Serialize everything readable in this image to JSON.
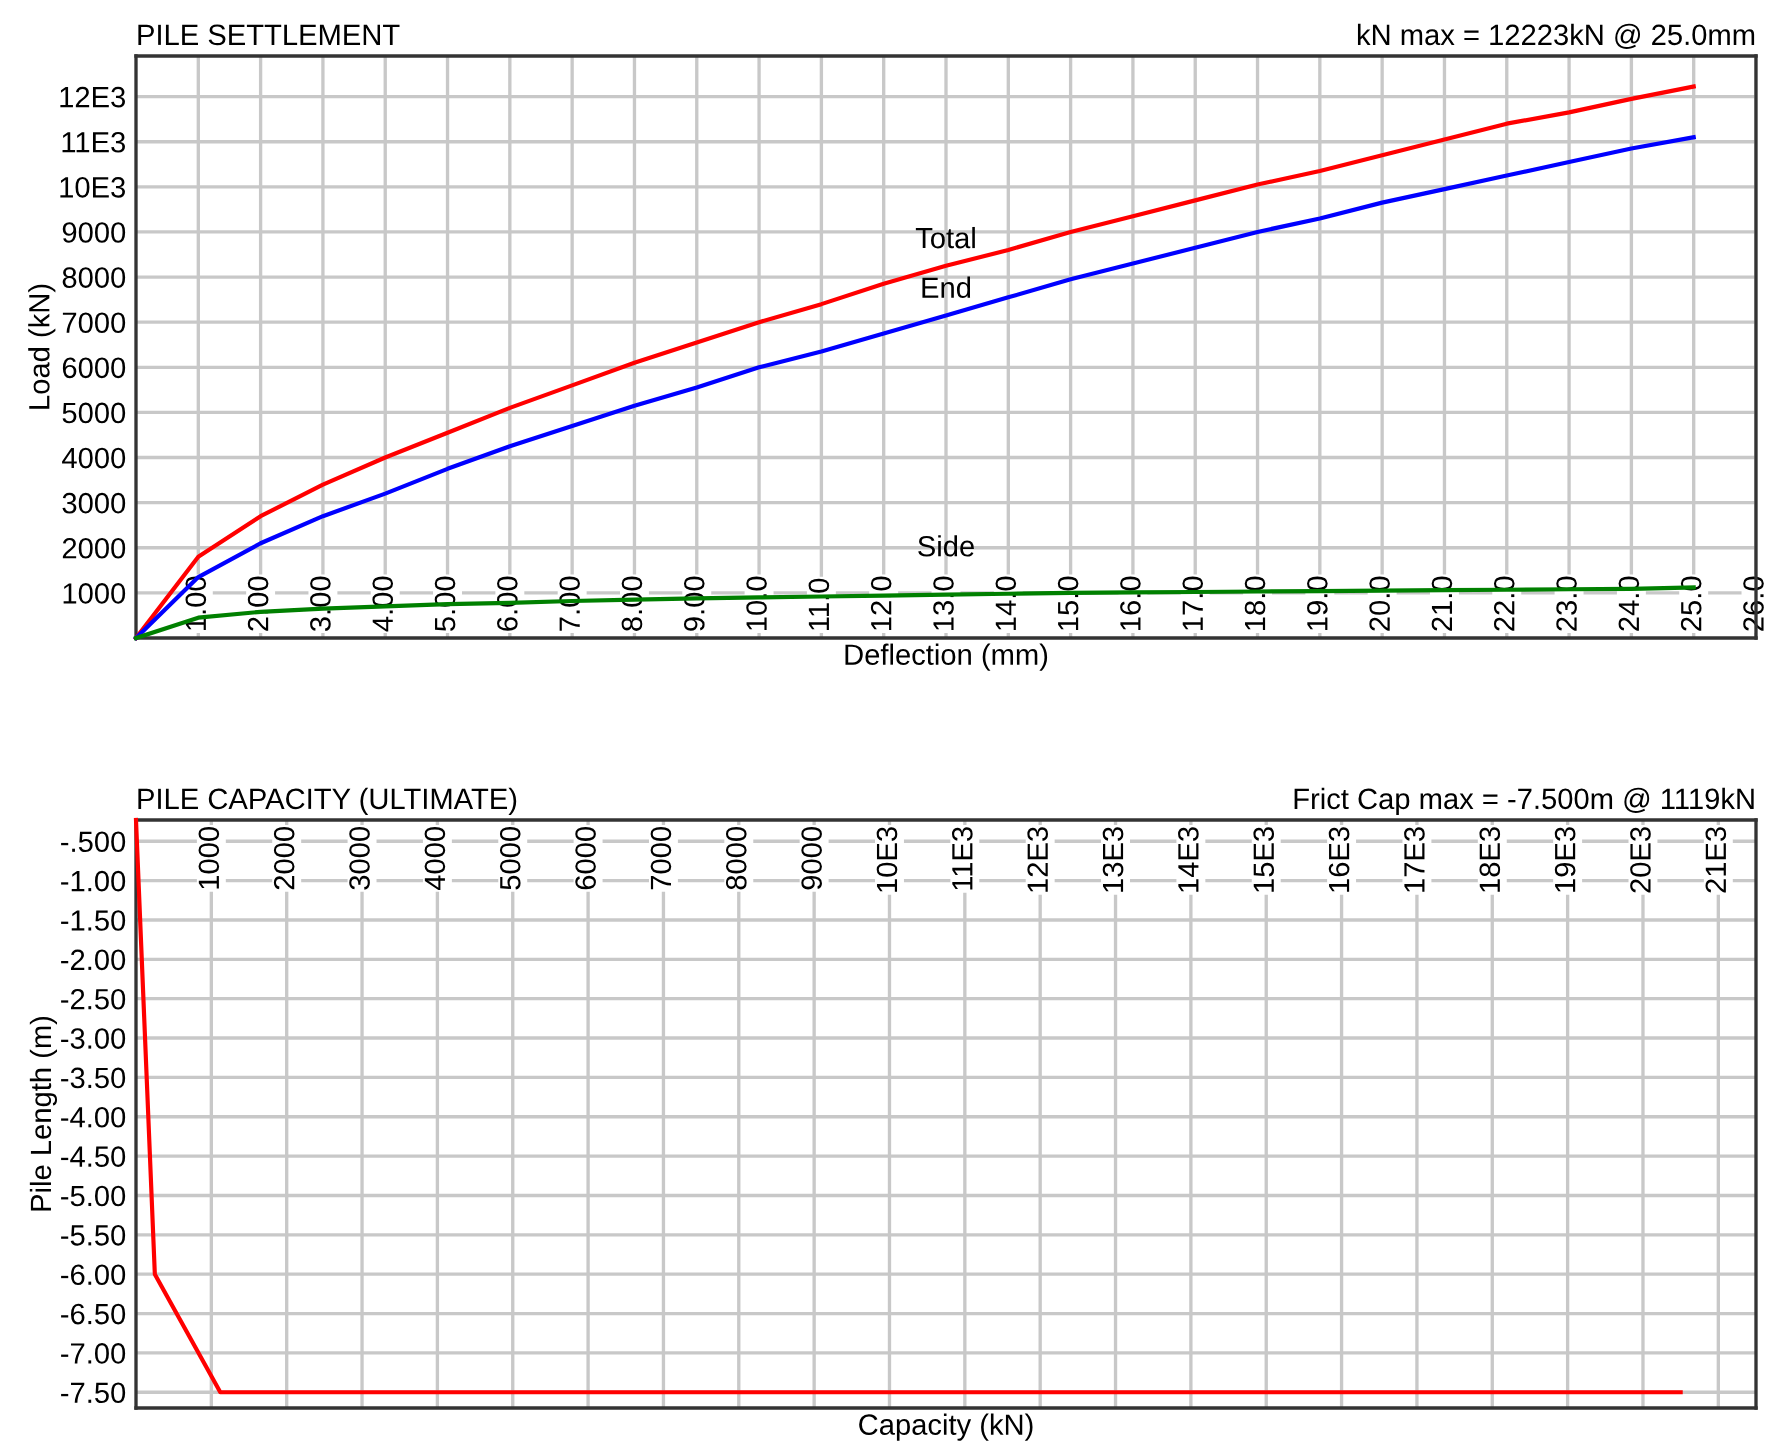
{
  "chart_data": [
    {
      "type": "line",
      "title": "PILE SETTLEMENT",
      "subtitle": "kN max = 12223kN @ 25.0mm",
      "xlabel": "Deflection (mm)",
      "ylabel": "Load (kN)",
      "x": [
        0,
        1,
        2,
        3,
        4,
        5,
        6,
        7,
        8,
        9,
        10,
        11,
        12,
        13,
        14,
        15,
        16,
        17,
        18,
        19,
        20,
        21,
        22,
        23,
        24,
        25
      ],
      "series": [
        {
          "color": "#ff0000",
          "values": [
            0,
            1800,
            2700,
            3400,
            4000,
            4550,
            5100,
            5600,
            6100,
            6550,
            7000,
            7400,
            7850,
            8250,
            8600,
            9000,
            9350,
            9700,
            10050,
            10350,
            10700,
            11050,
            11400,
            11650,
            11950,
            12223
          ]
        },
        {
          "color": "#0000ff",
          "values": [
            0,
            1350,
            2100,
            2700,
            3200,
            3750,
            4250,
            4700,
            5150,
            5550,
            6000,
            6350,
            6750,
            7150,
            7550,
            7950,
            8300,
            8650,
            9000,
            9300,
            9650,
            9950,
            10250,
            10550,
            10850,
            11100
          ]
        },
        {
          "color": "#008000",
          "values": [
            0,
            450,
            580,
            650,
            700,
            750,
            780,
            820,
            850,
            880,
            900,
            920,
            940,
            960,
            980,
            1000,
            1010,
            1020,
            1030,
            1040,
            1050,
            1060,
            1070,
            1080,
            1090,
            1120
          ]
        }
      ],
      "annotations": [
        "Total",
        "End",
        "Side"
      ],
      "xlim": [
        0,
        26
      ],
      "ylim": [
        0,
        12900
      ],
      "xticks": [
        {
          "value": 1,
          "label": "1.00"
        },
        {
          "value": 2,
          "label": "2.00"
        },
        {
          "value": 3,
          "label": "3.00"
        },
        {
          "value": 4,
          "label": "4.00"
        },
        {
          "value": 5,
          "label": "5.00"
        },
        {
          "value": 6,
          "label": "6.00"
        },
        {
          "value": 7,
          "label": "7.00"
        },
        {
          "value": 8,
          "label": "8.00"
        },
        {
          "value": 9,
          "label": "9.00"
        },
        {
          "value": 10,
          "label": "10.0"
        },
        {
          "value": 11,
          "label": "11.0"
        },
        {
          "value": 12,
          "label": "12.0"
        },
        {
          "value": 13,
          "label": "13.0"
        },
        {
          "value": 14,
          "label": "14.0"
        },
        {
          "value": 15,
          "label": "15.0"
        },
        {
          "value": 16,
          "label": "16.0"
        },
        {
          "value": 17,
          "label": "17.0"
        },
        {
          "value": 18,
          "label": "18.0"
        },
        {
          "value": 19,
          "label": "19.0"
        },
        {
          "value": 20,
          "label": "20.0"
        },
        {
          "value": 21,
          "label": "21.0"
        },
        {
          "value": 22,
          "label": "22.0"
        },
        {
          "value": 23,
          "label": "23.0"
        },
        {
          "value": 24,
          "label": "24.0"
        },
        {
          "value": 25,
          "label": "25.0"
        },
        {
          "value": 26,
          "label": "26.0"
        }
      ],
      "yticks": [
        1000,
        2000,
        3000,
        4000,
        5000,
        6000,
        7000,
        8000,
        9000,
        {
          "value": 10000,
          "label": "10E3"
        },
        {
          "value": 11000,
          "label": "11E3"
        },
        {
          "value": 12000,
          "label": "12E3"
        }
      ],
      "grid": true,
      "marker": "none",
      "line_style": "solid"
    },
    {
      "type": "line",
      "title": "PILE CAPACITY (ULTIMATE)",
      "subtitle": "Frict Cap max = -7.500m @ 1119kN",
      "xlabel": "Capacity (kN)",
      "ylabel": "Pile Length (m)",
      "series": [
        {
          "color": "#ff0000",
          "x": [
            0,
            250,
            1119,
            20500
          ],
          "values": [
            -0.23,
            -6.0,
            -7.5,
            -7.5
          ]
        }
      ],
      "xlim": [
        0,
        21500
      ],
      "ylim": [
        -7.7,
        -0.23
      ],
      "xticks": [
        1000,
        2000,
        3000,
        4000,
        5000,
        6000,
        7000,
        8000,
        9000,
        {
          "value": 10000,
          "label": "10E3"
        },
        {
          "value": 11000,
          "label": "11E3"
        },
        {
          "value": 12000,
          "label": "12E3"
        },
        {
          "value": 13000,
          "label": "13E3"
        },
        {
          "value": 14000,
          "label": "14E3"
        },
        {
          "value": 15000,
          "label": "15E3"
        },
        {
          "value": 16000,
          "label": "16E3"
        },
        {
          "value": 17000,
          "label": "17E3"
        },
        {
          "value": 18000,
          "label": "18E3"
        },
        {
          "value": 19000,
          "label": "19E3"
        },
        {
          "value": 20000,
          "label": "20E3"
        },
        {
          "value": 21000,
          "label": "21E3"
        }
      ],
      "yticks": [
        {
          "value": -0.5,
          "label": "-.500"
        },
        {
          "value": -1.0,
          "label": "-1.00"
        },
        {
          "value": -1.5,
          "label": "-1.50"
        },
        {
          "value": -2.0,
          "label": "-2.00"
        },
        {
          "value": -2.5,
          "label": "-2.50"
        },
        {
          "value": -3.0,
          "label": "-3.00"
        },
        {
          "value": -3.5,
          "label": "-3.50"
        },
        {
          "value": -4.0,
          "label": "-4.00"
        },
        {
          "value": -4.5,
          "label": "-4.50"
        },
        {
          "value": -5.0,
          "label": "-5.00"
        },
        {
          "value": -5.5,
          "label": "-5.50"
        },
        {
          "value": -6.0,
          "label": "-6.00"
        },
        {
          "value": -6.5,
          "label": "-6.50"
        },
        {
          "value": -7.0,
          "label": "-7.00"
        },
        {
          "value": -7.5,
          "label": "-7.50"
        }
      ],
      "grid": true,
      "marker": "none",
      "line_style": "solid"
    }
  ]
}
